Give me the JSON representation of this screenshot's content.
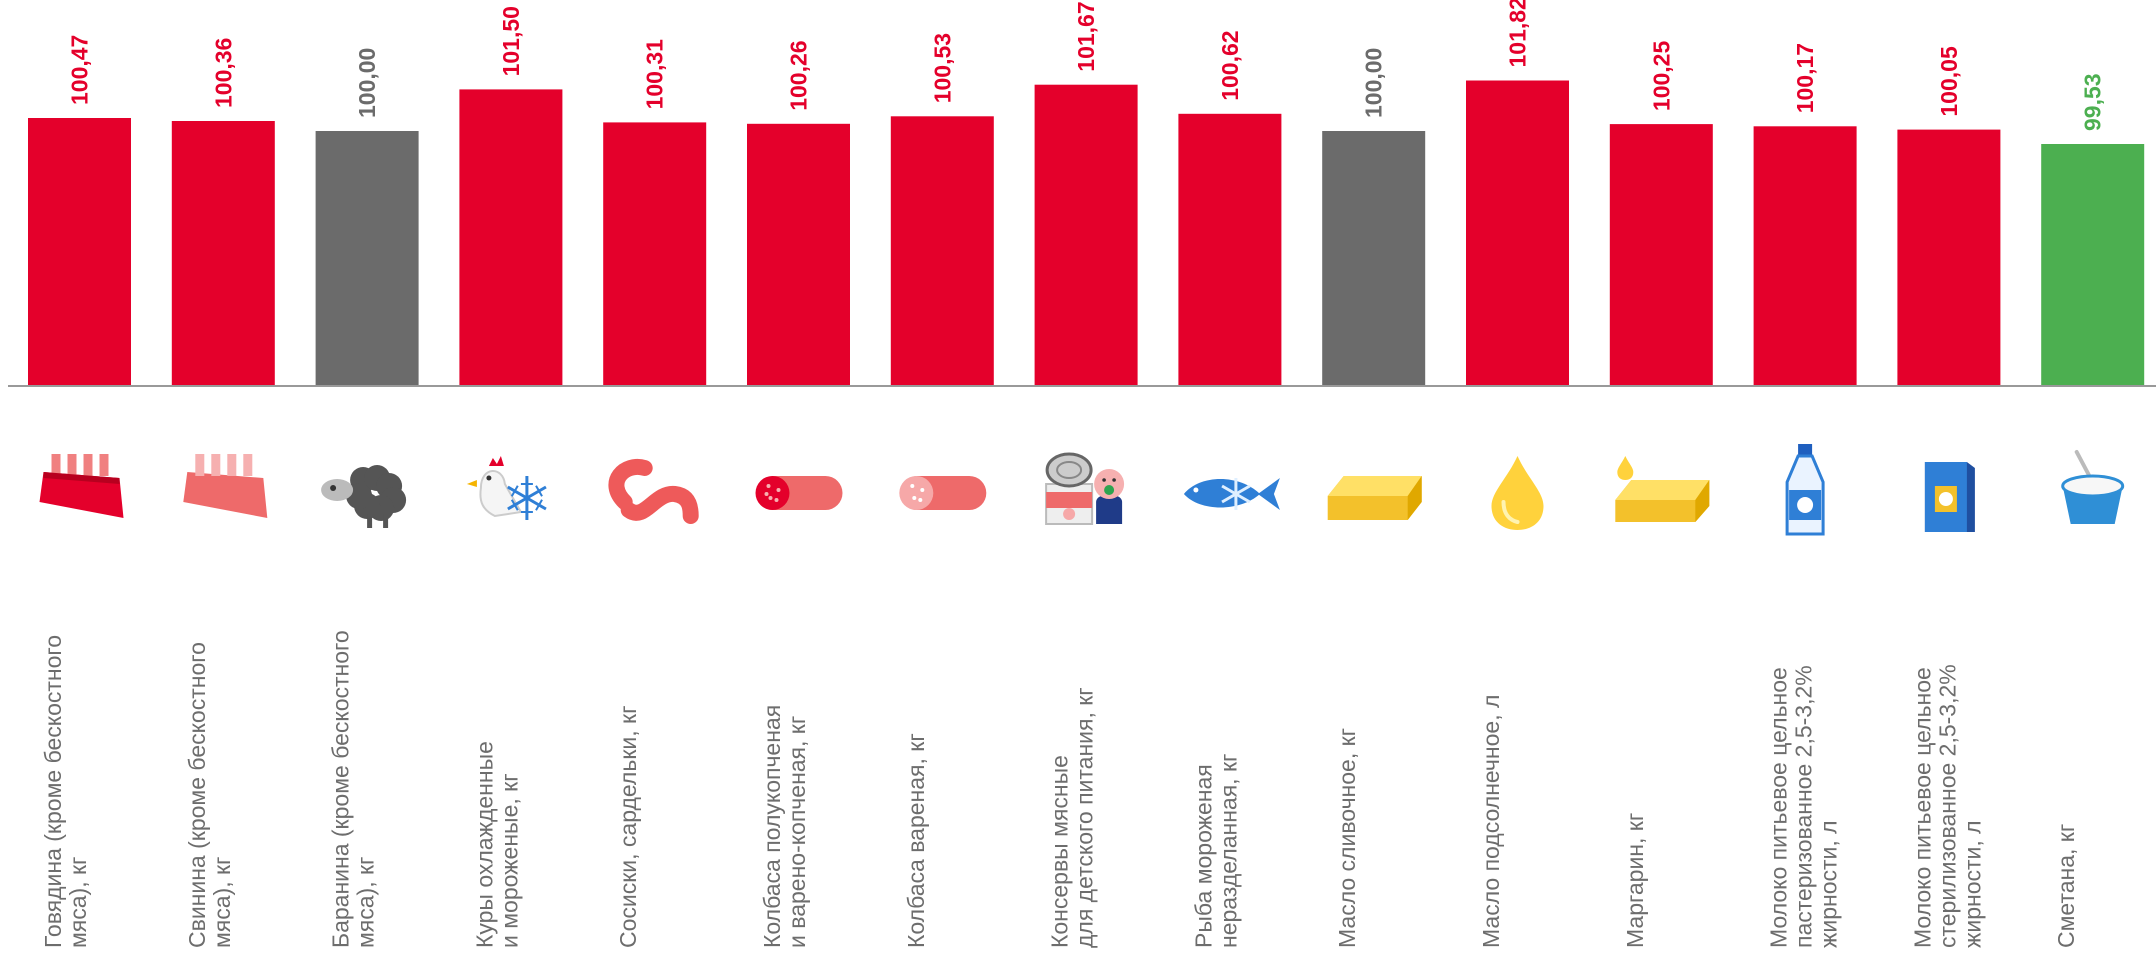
{
  "colors": {
    "increase": "#e4002b",
    "unchanged": "#6b6b6b",
    "decrease": "#4caf50",
    "axis": "#999999",
    "label_text": "#6d6d6d"
  },
  "chart_data": {
    "type": "bar",
    "title": "",
    "xlabel": "",
    "ylabel": "",
    "grid": false,
    "legend": "none",
    "value_label_orientation": "vertical",
    "categories": [
      "Говядина (кроме бескостного мяса), кг",
      "Свинина (кроме бескостного мяса), кг",
      "Баранина (кроме бескостного мяса), кг",
      "Куры охлажденные и мороженые, кг",
      "Сосиски, сардельки, кг",
      "Колбаса полукопченая и варено-копченая, кг",
      "Колбаса вареная, кг",
      "Консервы мясные для детского питания, кг",
      "Рыба мороженая неразделанная, кг",
      "Масло сливочное, кг",
      "Масло подсолнечное, л",
      "Маргарин, кг",
      "Молоко питьевое цельное пастеризованное 2,5-3,2% жирности, л",
      "Молоко питьевое цельное стерилизованное 2,5-3,2% жирности, л",
      "Сметана, кг"
    ],
    "category_lines": [
      [
        "Говядина (кроме бескостного",
        "мяса), кг"
      ],
      [
        "Свинина (кроме бескостного",
        "мяса), кг"
      ],
      [
        "Баранина (кроме бескостного",
        "мяса), кг"
      ],
      [
        "Куры охлажденные",
        "и мороженые, кг"
      ],
      [
        "Сосиски, сардельки, кг"
      ],
      [
        "Колбаса полукопченая",
        "и варено-копченая, кг"
      ],
      [
        "Колбаса вареная, кг"
      ],
      [
        "Консервы мясные",
        "для детского питания, кг"
      ],
      [
        "Рыба мороженая",
        "неразделанная, кг"
      ],
      [
        "Масло сливочное, кг"
      ],
      [
        "Масло подсолнечное, л"
      ],
      [
        "Маргарин, кг"
      ],
      [
        "Молоко питьевое цельное",
        "пастеризованное 2,5-3,2%",
        "жирности, л"
      ],
      [
        "Молоко питьевое цельное",
        "стерилизованное 2,5-3,2%",
        "жирности, л"
      ],
      [
        "Сметана, кг"
      ]
    ],
    "values": [
      100.47,
      100.36,
      100.0,
      101.5,
      100.31,
      100.26,
      100.53,
      101.67,
      100.62,
      100.0,
      101.82,
      100.25,
      100.17,
      100.05,
      99.53
    ],
    "value_labels": [
      "100,47",
      "100,36",
      "100,00",
      "101,50",
      "100,31",
      "100,26",
      "100,53",
      "101,67",
      "100,62",
      "100,00",
      "101,82",
      "100,25",
      "100,17",
      "100,05",
      "99,53"
    ],
    "icons": [
      "beef-ribs-icon",
      "pork-ribs-icon",
      "sheep-icon",
      "frozen-chicken-icon",
      "sausages-icon",
      "smoked-sausage-icon",
      "boiled-sausage-icon",
      "baby-canned-meat-icon",
      "frozen-fish-icon",
      "butter-icon",
      "sunflower-oil-drop-icon",
      "margarine-icon",
      "milk-bottle-icon",
      "milk-carton-icon",
      "sour-cream-icon"
    ]
  }
}
